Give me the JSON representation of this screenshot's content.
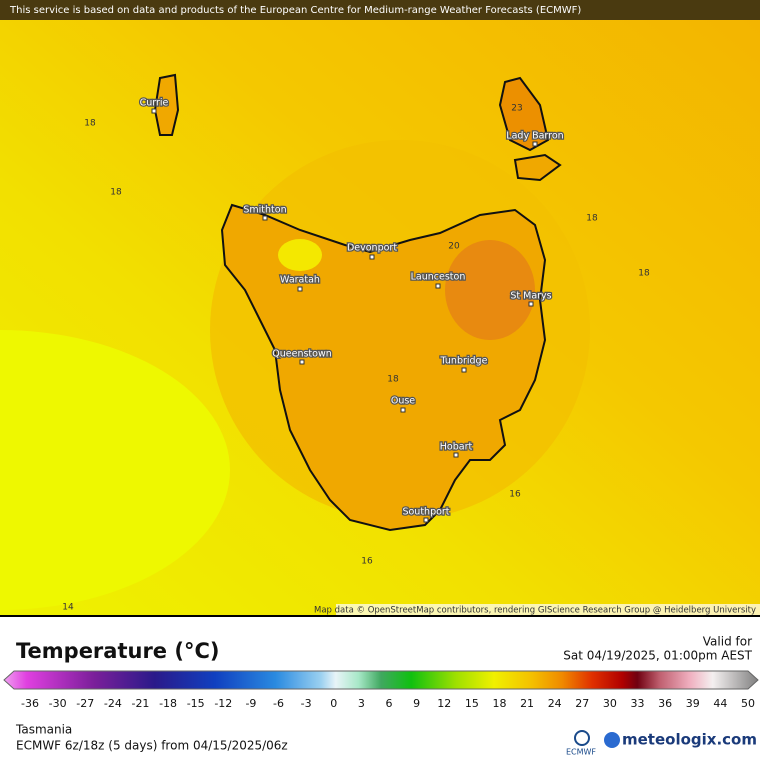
{
  "banner": "This service is based on data and products of the European Centre for Medium-range Weather Forecasts (ECMWF)",
  "map": {
    "places": [
      "Currie",
      "Lady Barron",
      "Smithton",
      "Devonport",
      "Waratah",
      "Launceston",
      "St Marys",
      "Queenstown",
      "Tunbridge",
      "Ouse",
      "Hobart",
      "Southport"
    ],
    "contour_labels": [
      18,
      18,
      23,
      18,
      20,
      18,
      18,
      16,
      16,
      14
    ],
    "attribution": "Map data © OpenStreetMap contributors, rendering GIScience Research Group @ Heidelberg University"
  },
  "legend": {
    "title": "Temperature (°C)",
    "valid_label": "Valid for",
    "valid_time": "Sat 04/19/2025, 01:00pm AEST",
    "scale_ticks": [
      -36,
      -30,
      -27,
      -24,
      -21,
      -18,
      -15,
      -12,
      -9,
      -6,
      -3,
      0,
      3,
      6,
      9,
      12,
      15,
      18,
      21,
      24,
      27,
      30,
      33,
      36,
      39,
      44,
      50
    ]
  },
  "footer": {
    "region": "Tasmania",
    "model": "ECMWF 6z/18z (5 days) from 04/15/2025/06z",
    "logo_ecmwf": "ECMWF",
    "logo_site": "meteologix.com"
  }
}
